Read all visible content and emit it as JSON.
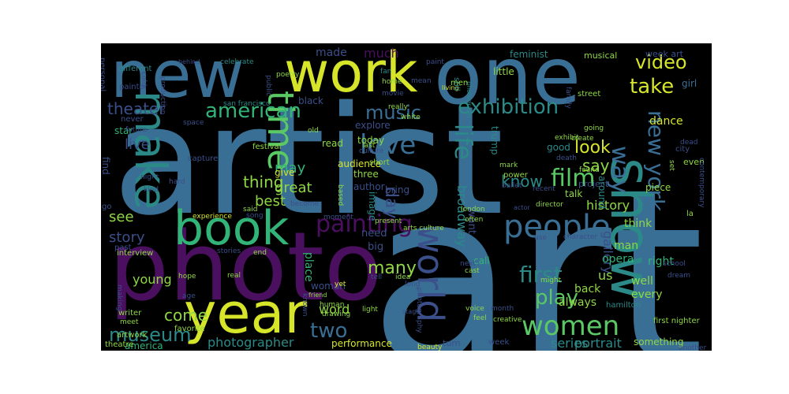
{
  "wordcloud": {
    "words": [
      {
        "text": "art",
        "color": "#3a6f95"
      },
      {
        "text": "artist",
        "color": "#3a6f95"
      },
      {
        "text": "photo",
        "color": "#4a0f5e"
      },
      {
        "text": "new",
        "color": "#3a6f95"
      },
      {
        "text": "work",
        "color": "#d6e52a"
      },
      {
        "text": "one",
        "color": "#3a6f95"
      },
      {
        "text": "show",
        "color": "#2b8a88"
      },
      {
        "text": "year",
        "color": "#d6e52a"
      },
      {
        "text": "book",
        "color": "#32b479"
      },
      {
        "text": "make",
        "color": "#2b8a88"
      },
      {
        "text": "time",
        "color": "#5ac864"
      },
      {
        "text": "world",
        "color": "#3b4f8a"
      },
      {
        "text": "people",
        "color": "#3a6f95"
      },
      {
        "text": "women",
        "color": "#5ac864"
      },
      {
        "text": "painting",
        "color": "#4a0f5e"
      },
      {
        "text": "film",
        "color": "#5ac864"
      },
      {
        "text": "love",
        "color": "#3a6f95"
      },
      {
        "text": "life",
        "color": "#2b8a88"
      },
      {
        "text": "exhibition",
        "color": "#2b8a88"
      },
      {
        "text": "american",
        "color": "#32b479"
      },
      {
        "text": "music",
        "color": "#3a6f95"
      },
      {
        "text": "new york",
        "color": "#3a6f95"
      },
      {
        "text": "play",
        "color": "#5ac864"
      },
      {
        "text": "first",
        "color": "#2b8a88"
      },
      {
        "text": "take",
        "color": "#d6e52a"
      },
      {
        "text": "video",
        "color": "#d6e52a"
      },
      {
        "text": "way",
        "color": "#3a6f95"
      },
      {
        "text": "two",
        "color": "#3a6f95"
      },
      {
        "text": "many",
        "color": "#8fd744"
      },
      {
        "text": "museum",
        "color": "#2b8a88"
      },
      {
        "text": "day",
        "color": "#3b4f8a"
      },
      {
        "text": "theater",
        "color": "#3b4f8a"
      },
      {
        "text": "look",
        "color": "#d6e52a"
      },
      {
        "text": "say",
        "color": "#8fd744"
      },
      {
        "text": "know",
        "color": "#2b8a88"
      },
      {
        "text": "come",
        "color": "#8fd744"
      },
      {
        "text": "see",
        "color": "#8fd744"
      },
      {
        "text": "live",
        "color": "#3b4f8a"
      },
      {
        "text": "thing",
        "color": "#8fd744"
      },
      {
        "text": "great",
        "color": "#8fd744"
      },
      {
        "text": "may",
        "color": "#32b479"
      },
      {
        "text": "best",
        "color": "#8fd744"
      },
      {
        "text": "story",
        "color": "#3b4f8a"
      },
      {
        "text": "history",
        "color": "#8fd744"
      },
      {
        "text": "photographer",
        "color": "#2b8a88"
      },
      {
        "text": "series",
        "color": "#2b8a88"
      },
      {
        "text": "portrait",
        "color": "#2b8a88"
      },
      {
        "text": "broadway",
        "color": "#2b8a88"
      },
      {
        "text": "gallery",
        "color": "#3b4f8a"
      },
      {
        "text": "word",
        "color": "#8fd744"
      },
      {
        "text": "much",
        "color": "#4a0f5e"
      },
      {
        "text": "made",
        "color": "#3b4f8a"
      },
      {
        "text": "performance",
        "color": "#d6e52a"
      },
      {
        "text": "america",
        "color": "#32b479"
      },
      {
        "text": "young",
        "color": "#8fd744"
      },
      {
        "text": "opera",
        "color": "#32b479"
      },
      {
        "text": "us",
        "color": "#8fd744"
      },
      {
        "text": "well",
        "color": "#8fd744"
      },
      {
        "text": "every",
        "color": "#8fd744"
      },
      {
        "text": "back",
        "color": "#8fd744"
      },
      {
        "text": "always",
        "color": "#8fd744"
      },
      {
        "text": "think",
        "color": "#8fd744"
      },
      {
        "text": "man",
        "color": "#8fd744"
      },
      {
        "text": "right",
        "color": "#32b479"
      },
      {
        "text": "want",
        "color": "#3b4f8a"
      },
      {
        "text": "big",
        "color": "#3b4f8a"
      },
      {
        "text": "need",
        "color": "#3b4f8a"
      },
      {
        "text": "place",
        "color": "#32b479"
      },
      {
        "text": "dance",
        "color": "#d6e52a"
      },
      {
        "text": "girl",
        "color": "#3a6f95"
      },
      {
        "text": "musical",
        "color": "#8fd744"
      },
      {
        "text": "week art",
        "color": "#3b4f8a"
      },
      {
        "text": "feminist",
        "color": "#2b8a88"
      },
      {
        "text": "little",
        "color": "#8fd744"
      },
      {
        "text": "black",
        "color": "#3b4f8a"
      },
      {
        "text": "explore",
        "color": "#3b4f8a"
      },
      {
        "text": "today",
        "color": "#8fd744"
      },
      {
        "text": "audience",
        "color": "#d6e52a"
      },
      {
        "text": "three",
        "color": "#8fd744"
      },
      {
        "text": "author",
        "color": "#3b4f8a"
      },
      {
        "text": "bring",
        "color": "#3b4f8a"
      },
      {
        "text": "image",
        "color": "#2b8a88"
      },
      {
        "text": "read",
        "color": "#8fd744"
      },
      {
        "text": "give",
        "color": "#d6e52a"
      },
      {
        "text": "trump",
        "color": "#2b8a88"
      },
      {
        "text": "good",
        "color": "#2b8a88"
      },
      {
        "text": "talk",
        "color": "#8fd744"
      },
      {
        "text": "project",
        "color": "#3b4f8a"
      },
      {
        "text": "piece",
        "color": "#8fd744"
      },
      {
        "text": "city",
        "color": "#3b4f8a"
      },
      {
        "text": "even",
        "color": "#8fd744"
      },
      {
        "text": "contemporary",
        "color": "#3b4f8a"
      },
      {
        "text": "around",
        "color": "#2b8a88"
      },
      {
        "text": "woman",
        "color": "#3b4f8a"
      },
      {
        "text": "call",
        "color": "#32b479"
      },
      {
        "text": "something",
        "color": "#8fd744"
      },
      {
        "text": "turn",
        "color": "#3b4f8a"
      },
      {
        "text": "week",
        "color": "#3b4f8a"
      },
      {
        "text": "personal",
        "color": "#3b4f8a"
      },
      {
        "text": "different",
        "color": "#2b8a88"
      },
      {
        "text": "behind",
        "color": "#3b4f8a"
      },
      {
        "text": "celebrate",
        "color": "#2b8a88"
      },
      {
        "text": "poetry",
        "color": "#8fd744"
      },
      {
        "text": "painter",
        "color": "#3b4f8a"
      },
      {
        "text": "never",
        "color": "#3b4f8a"
      },
      {
        "text": "star",
        "color": "#32b479"
      },
      {
        "text": "fan",
        "color": "#2b8a88"
      },
      {
        "text": "home",
        "color": "#8fd744"
      },
      {
        "text": "movie",
        "color": "#3b4f8a"
      },
      {
        "text": "public",
        "color": "#3b4f8a"
      },
      {
        "text": "san francisco",
        "color": "#2b8a88"
      },
      {
        "text": "living",
        "color": "#d6e52a"
      },
      {
        "text": "still",
        "color": "#2b8a88"
      },
      {
        "text": "photograph",
        "color": "#2b8a88"
      },
      {
        "text": "men",
        "color": "#8fd744"
      },
      {
        "text": "street",
        "color": "#8fd744"
      },
      {
        "text": "family",
        "color": "#3b4f8a"
      },
      {
        "text": "future",
        "color": "#3b4f8a"
      },
      {
        "text": "color",
        "color": "#3b4f8a"
      },
      {
        "text": "production",
        "color": "#3b4f8a"
      },
      {
        "text": "space",
        "color": "#3b4f8a"
      },
      {
        "text": "old",
        "color": "#8fd744"
      },
      {
        "text": "last",
        "color": "#8fd744"
      },
      {
        "text": "really",
        "color": "#8fd744"
      },
      {
        "text": "white",
        "color": "#8fd744"
      },
      {
        "text": "festival",
        "color": "#8fd744"
      },
      {
        "text": "culture",
        "color": "#3b4f8a"
      },
      {
        "text": "short",
        "color": "#8fd744"
      },
      {
        "text": "exhibit",
        "color": "#8fd744"
      },
      {
        "text": "create",
        "color": "#8fd744"
      },
      {
        "text": "going",
        "color": "#8fd744"
      },
      {
        "text": "death",
        "color": "#3b4f8a"
      },
      {
        "text": "found",
        "color": "#8fd744"
      },
      {
        "text": "set",
        "color": "#8fd744"
      },
      {
        "text": "dead",
        "color": "#3b4f8a"
      },
      {
        "text": "mark",
        "color": "#8fd744"
      },
      {
        "text": "power",
        "color": "#8fd744"
      },
      {
        "text": "recent",
        "color": "#3b4f8a"
      },
      {
        "text": "ballet",
        "color": "#3b4f8a"
      },
      {
        "text": "la",
        "color": "#8fd744"
      },
      {
        "text": "capture",
        "color": "#3b4f8a"
      },
      {
        "text": "hard",
        "color": "#3b4f8a"
      },
      {
        "text": "find",
        "color": "#3b4f8a"
      },
      {
        "text": "night",
        "color": "#3b4f8a"
      },
      {
        "text": "kind",
        "color": "#3b4f8a"
      },
      {
        "text": "go",
        "color": "#3b4f8a"
      },
      {
        "text": "interview",
        "color": "#8fd744"
      },
      {
        "text": "experience",
        "color": "#d6e52a"
      },
      {
        "text": "past",
        "color": "#3b4f8a"
      },
      {
        "text": "stories",
        "color": "#3b4f8a"
      },
      {
        "text": "said",
        "color": "#8fd744"
      },
      {
        "text": "song",
        "color": "#3b4f8a"
      },
      {
        "text": "become",
        "color": "#3b4f8a"
      },
      {
        "text": "based",
        "color": "#8fd744"
      },
      {
        "text": "end",
        "color": "#8fd744"
      },
      {
        "text": "moment",
        "color": "#3b4f8a"
      },
      {
        "text": "present",
        "color": "#8fd744"
      },
      {
        "text": "arts culture",
        "color": "#8fd744"
      },
      {
        "text": "london",
        "color": "#8fd744"
      },
      {
        "text": "often",
        "color": "#8fd744"
      },
      {
        "text": "actor",
        "color": "#3b4f8a"
      },
      {
        "text": "director",
        "color": "#8fd744"
      },
      {
        "text": "use",
        "color": "#3b4f8a"
      },
      {
        "text": "character",
        "color": "#3b4f8a"
      },
      {
        "text": "real",
        "color": "#8fd744"
      },
      {
        "text": "hope",
        "color": "#8fd744"
      },
      {
        "text": "making",
        "color": "#3b4f8a"
      },
      {
        "text": "age",
        "color": "#3b4f8a"
      },
      {
        "text": "writer",
        "color": "#8fd744"
      },
      {
        "text": "meet",
        "color": "#8fd744"
      },
      {
        "text": "artwork",
        "color": "#8fd744"
      },
      {
        "text": "favorite",
        "color": "#8fd744"
      },
      {
        "text": "theatre",
        "color": "#8fd744"
      },
      {
        "text": "friend",
        "color": "#8fd744"
      },
      {
        "text": "known",
        "color": "#3b4f8a"
      },
      {
        "text": "human",
        "color": "#8fd744"
      },
      {
        "text": "drawing",
        "color": "#8fd744"
      },
      {
        "text": "yet",
        "color": "#d6e52a"
      },
      {
        "text": "light",
        "color": "#8fd744"
      },
      {
        "text": "tell",
        "color": "#3b4f8a"
      },
      {
        "text": "idea",
        "color": "#8fd744"
      },
      {
        "text": "long",
        "color": "#3b4f8a"
      },
      {
        "text": "stage",
        "color": "#3b4f8a"
      },
      {
        "text": "next",
        "color": "#3b4f8a"
      },
      {
        "text": "cast",
        "color": "#8fd744"
      },
      {
        "text": "photography",
        "color": "#3b4f8a"
      },
      {
        "text": "beauty",
        "color": "#d6e52a"
      },
      {
        "text": "voice",
        "color": "#8fd744"
      },
      {
        "text": "month",
        "color": "#3b4f8a"
      },
      {
        "text": "feel",
        "color": "#8fd744"
      },
      {
        "text": "creative",
        "color": "#8fd744"
      },
      {
        "text": "might",
        "color": "#8fd744"
      },
      {
        "text": "hamilton",
        "color": "#2b8a88"
      },
      {
        "text": "school",
        "color": "#3b4f8a"
      },
      {
        "text": "dream",
        "color": "#3b4f8a"
      },
      {
        "text": "first nighter",
        "color": "#8fd744"
      },
      {
        "text": "another",
        "color": "#3b4f8a"
      },
      {
        "text": "mean",
        "color": "#3b4f8a"
      },
      {
        "text": "paint",
        "color": "#3b4f8a"
      }
    ]
  }
}
